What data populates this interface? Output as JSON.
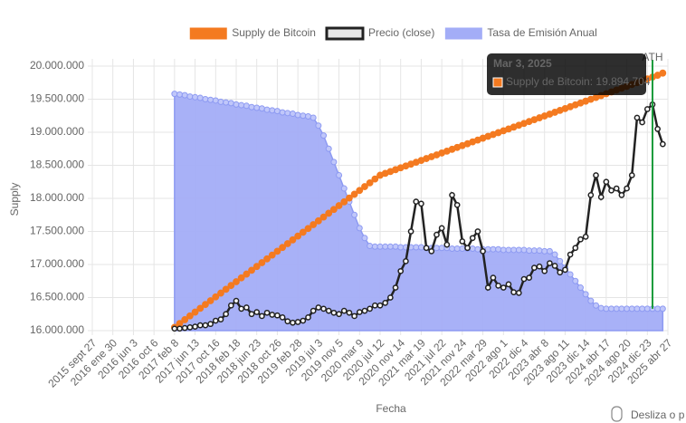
{
  "chart_data": {
    "type": "line",
    "y_label": "Supply",
    "x_label": "Fecha",
    "legend": "top",
    "grid": true,
    "ylim": [
      16000000,
      20000000
    ],
    "yticks": [
      {
        "value": 16000000,
        "label": "16.000.000"
      },
      {
        "value": 16500000,
        "label": "16.500.000"
      },
      {
        "value": 17000000,
        "label": "17.000.000"
      },
      {
        "value": 17500000,
        "label": "17.500.000"
      },
      {
        "value": 18000000,
        "label": "18.000.000"
      },
      {
        "value": 18500000,
        "label": "18.500.000"
      },
      {
        "value": 19000000,
        "label": "19.000.000"
      },
      {
        "value": 19500000,
        "label": "19.500.000"
      },
      {
        "value": 20000000,
        "label": "20.000.000"
      }
    ],
    "categories": [
      "2015 sept 27",
      null,
      null,
      null,
      "2016 ene 30",
      null,
      null,
      null,
      "2016 jun 3",
      null,
      null,
      null,
      "2016 oct 6",
      null,
      null,
      null,
      "2017 feb 8",
      null,
      null,
      null,
      "2017 jun 13",
      null,
      null,
      null,
      "2017 oct 16",
      null,
      null,
      null,
      "2018 feb 18",
      null,
      null,
      null,
      "2018 jun 23",
      null,
      null,
      null,
      "2018 oct 26",
      null,
      null,
      null,
      "2019 feb 28",
      null,
      null,
      null,
      "2019 jul 3",
      null,
      null,
      null,
      "2019 nov 5",
      null,
      null,
      null,
      "2020 mar 9",
      null,
      null,
      null,
      "2020 jul 12",
      null,
      null,
      null,
      "2020 nov 14",
      null,
      null,
      null,
      "2021 mar 19",
      null,
      null,
      null,
      "2021 jul 22",
      null,
      null,
      null,
      "2021 nov 24",
      null,
      null,
      null,
      "2022 mar 29",
      null,
      null,
      null,
      "2022 ago 1",
      null,
      null,
      null,
      "2022 dic 4",
      null,
      null,
      null,
      "2023 abr 8",
      null,
      null,
      null,
      "2023 ago 11",
      null,
      null,
      null,
      "2023 dic 14",
      null,
      null,
      null,
      "2024 abr 17",
      null,
      null,
      null,
      "2024 ago 20",
      null,
      null,
      null,
      "2024 dic 23",
      null,
      null,
      null,
      "2025 abr 27"
    ],
    "series": [
      {
        "name": "Supply de Bitcoin",
        "type": "line",
        "color": "#f47a20",
        "values": [
          null,
          null,
          null,
          null,
          null,
          null,
          null,
          null,
          null,
          null,
          null,
          null,
          null,
          null,
          null,
          null,
          16050000,
          16107500,
          16165000,
          16222500,
          16280000,
          16337500,
          16395000,
          16452500,
          16510000,
          16567500,
          16625000,
          16682500,
          16740000,
          16797500,
          16855000,
          16912500,
          16970000,
          17027500,
          17085000,
          17142500,
          17200000,
          17257500,
          17315000,
          17372500,
          17430000,
          17487500,
          17545000,
          17602500,
          17660000,
          17717500,
          17775000,
          17832500,
          17890000,
          17947500,
          18005000,
          18062500,
          18120000,
          18177500,
          18235000,
          18292500,
          18350000,
          18378000,
          18406000,
          18434000,
          18462000,
          18490000,
          18518000,
          18546000,
          18574000,
          18602000,
          18630000,
          18658000,
          18686000,
          18714000,
          18742000,
          18770000,
          18798000,
          18826000,
          18854000,
          18882000,
          18910000,
          18938000,
          18966000,
          18994000,
          19022000,
          19050000,
          19078000,
          19106000,
          19134000,
          19162000,
          19190000,
          19218000,
          19246000,
          19274000,
          19302000,
          19330000,
          19358000,
          19386000,
          19414000,
          19442000,
          19470000,
          19498000,
          19526000,
          19554000,
          19582000,
          19610000,
          19638000,
          19666000,
          19694000,
          19722000,
          19750000,
          19778000,
          19806000,
          19834000,
          19862000,
          19894704,
          null
        ]
      },
      {
        "name": "Precio (close)",
        "type": "line",
        "color": "#222222",
        "values": [
          null,
          null,
          null,
          null,
          null,
          null,
          null,
          null,
          null,
          null,
          null,
          null,
          null,
          null,
          null,
          null,
          16030000,
          16030000,
          16040000,
          16050000,
          16060000,
          16080000,
          16080000,
          16100000,
          16150000,
          16170000,
          16250000,
          16380000,
          16450000,
          16330000,
          16350000,
          16250000,
          16280000,
          16220000,
          16270000,
          16240000,
          16230000,
          16200000,
          16140000,
          16120000,
          16130000,
          16150000,
          16200000,
          16300000,
          16350000,
          16330000,
          16300000,
          16270000,
          16250000,
          16300000,
          16270000,
          16220000,
          16280000,
          16300000,
          16330000,
          16380000,
          16380000,
          16420000,
          16500000,
          16650000,
          16900000,
          17050000,
          17500000,
          17950000,
          17920000,
          17250000,
          17200000,
          17450000,
          17550000,
          17300000,
          18050000,
          17900000,
          17350000,
          17250000,
          17400000,
          17500000,
          17200000,
          16650000,
          16800000,
          16680000,
          16650000,
          16700000,
          16580000,
          16570000,
          16780000,
          16800000,
          16950000,
          16970000,
          16900000,
          17020000,
          16980000,
          16880000,
          16920000,
          17150000,
          17250000,
          17380000,
          17420000,
          18050000,
          18350000,
          18020000,
          18250000,
          18120000,
          18150000,
          18050000,
          18150000,
          18350000,
          19220000,
          19150000,
          19350000,
          19420000,
          19050000,
          18820000,
          null
        ]
      },
      {
        "name": "Tasa de Emisión Anual",
        "type": "area",
        "color": "#a3adf7",
        "values": [
          null,
          null,
          null,
          null,
          null,
          null,
          null,
          null,
          null,
          null,
          null,
          null,
          null,
          null,
          null,
          null,
          19580000,
          19570000,
          19560000,
          19540000,
          19530000,
          19520000,
          19500000,
          19490000,
          19480000,
          19460000,
          19450000,
          19440000,
          19420000,
          19410000,
          19400000,
          19380000,
          19370000,
          19360000,
          19340000,
          19330000,
          19320000,
          19300000,
          19290000,
          19280000,
          19260000,
          19250000,
          19240000,
          19220000,
          19100000,
          18950000,
          18750000,
          18550000,
          18350000,
          18150000,
          17950000,
          17750000,
          17550000,
          17400000,
          17280000,
          17270000,
          17270000,
          17270000,
          17270000,
          17270000,
          17260000,
          17260000,
          17260000,
          17260000,
          17260000,
          17250000,
          17250000,
          17250000,
          17250000,
          17250000,
          17240000,
          17240000,
          17240000,
          17240000,
          17240000,
          17230000,
          17230000,
          17230000,
          17230000,
          17230000,
          17220000,
          17220000,
          17220000,
          17220000,
          17220000,
          17210000,
          17210000,
          17210000,
          17200000,
          17200000,
          17150000,
          17050000,
          16950000,
          16850000,
          16750000,
          16650000,
          16550000,
          16450000,
          16380000,
          16340000,
          16330000,
          16330000,
          16330000,
          16330000,
          16330000,
          16330000,
          16330000,
          16330000,
          16330000,
          16330000,
          16330000,
          16330000,
          null
        ]
      }
    ],
    "annotation": "ATH",
    "tooltip": {
      "title": "Mar 3, 2025",
      "label": "Supply de Bitcoin: 19.894.704"
    },
    "hint": "Desliza o p"
  }
}
